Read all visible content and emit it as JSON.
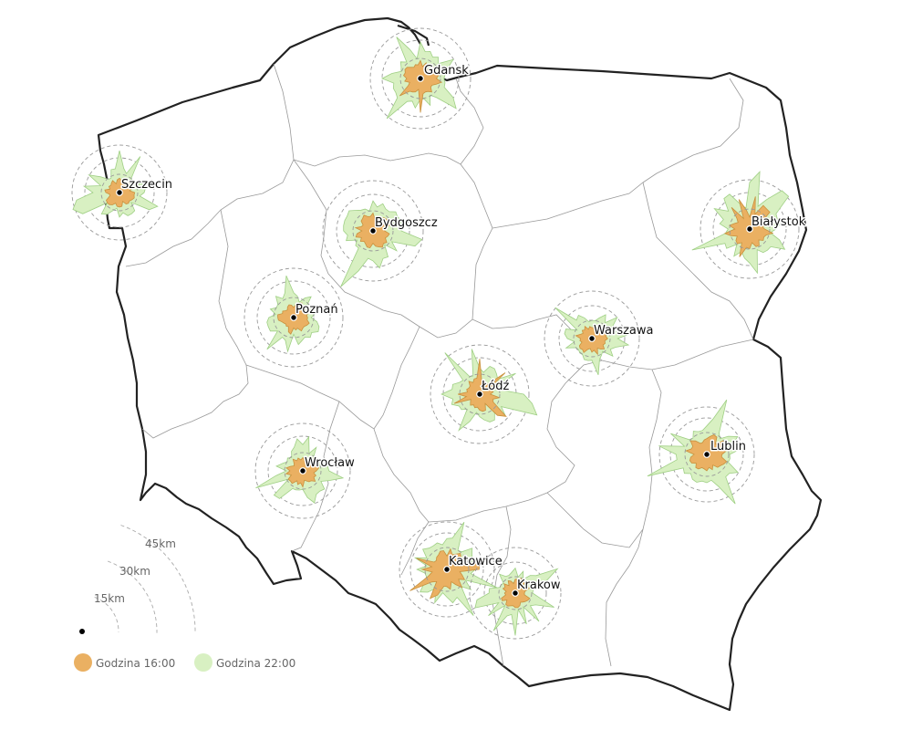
{
  "colors": {
    "hour_16": "#eab062",
    "hour_16_stroke": "#c8913d",
    "hour_22": "#d8f0c2",
    "hour_22_stroke": "#9fcf84",
    "border": "#222222",
    "regions": "#999999",
    "rings": "#999999"
  },
  "legend": {
    "hour_16": "Godzina 16:00",
    "hour_22": "Godzina 22:00"
  },
  "scale": {
    "labels": [
      "15km",
      "30km",
      "45km"
    ],
    "km": [
      15,
      30,
      45
    ]
  },
  "cities": [
    {
      "id": "gdansk",
      "name": "Gdansk"
    },
    {
      "id": "szczecin",
      "name": "Szczecin"
    },
    {
      "id": "bydgoszcz",
      "name": "Bydgoszcz"
    },
    {
      "id": "bialystok",
      "name": "Białystok"
    },
    {
      "id": "poznan",
      "name": "Poznań"
    },
    {
      "id": "warszawa",
      "name": "Warszawa"
    },
    {
      "id": "lodz",
      "name": "Łódź"
    },
    {
      "id": "lublin",
      "name": "Lublin"
    },
    {
      "id": "wroclaw",
      "name": "Wrocław"
    },
    {
      "id": "katowice",
      "name": "Katowice"
    },
    {
      "id": "krakow",
      "name": "Krakow"
    }
  ]
}
